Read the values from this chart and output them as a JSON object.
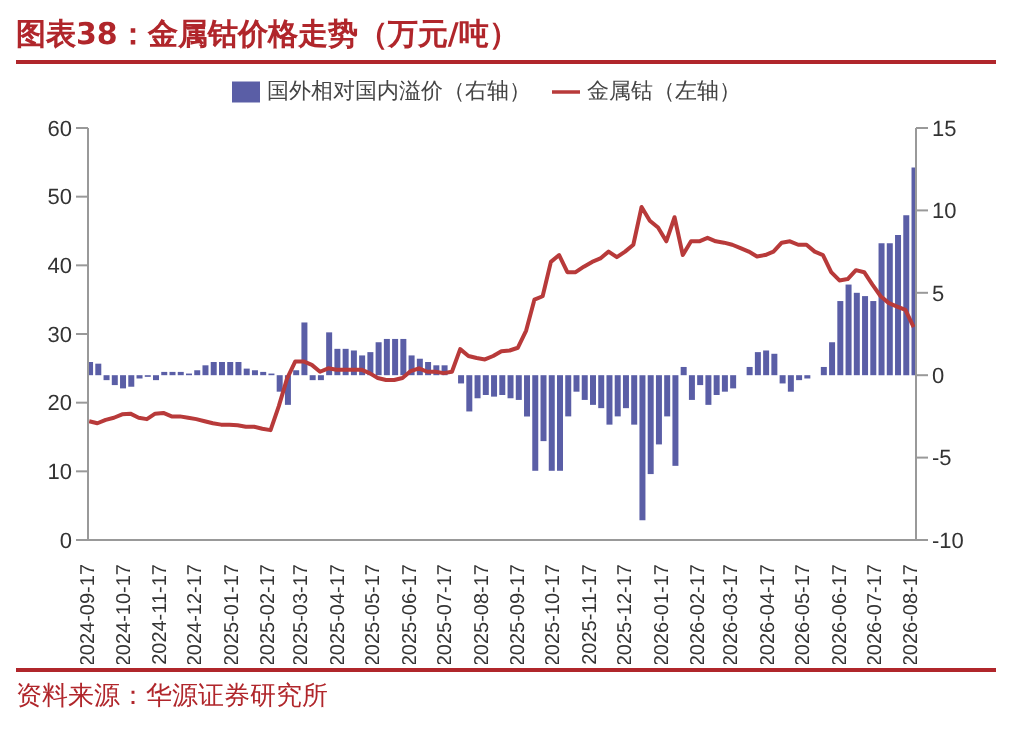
{
  "chart_data": {
    "type": "bar",
    "title": "图表38：金属钴价格走势（万元/吨）",
    "annotations": [
      "资料来源：华源证券研究所"
    ],
    "x": [
      "2024-09-17",
      "2024-09-24",
      "2024-10-01",
      "2024-10-08",
      "2024-10-15",
      "2024-10-22",
      "2024-10-29",
      "2024-11-05",
      "2024-11-12",
      "2024-11-19",
      "2024-11-26",
      "2024-12-03",
      "2024-12-10",
      "2024-12-17",
      "2024-12-24",
      "2024-12-31",
      "2025-01-07",
      "2025-01-14",
      "2025-01-21",
      "2025-01-28",
      "2025-02-04",
      "2025-02-11",
      "2025-02-18",
      "2025-02-25",
      "2025-03-04",
      "2025-03-11",
      "2025-03-18",
      "2025-03-25",
      "2025-04-01",
      "2025-04-08",
      "2025-04-15",
      "2025-04-22",
      "2025-04-29",
      "2025-05-06",
      "2025-05-13",
      "2025-05-20",
      "2025-05-27",
      "2025-06-03",
      "2025-06-10",
      "2025-06-17",
      "2025-06-24",
      "2025-07-01",
      "2025-07-08",
      "2025-07-15",
      "2025-07-22",
      "2025-07-29",
      "2025-08-05",
      "2025-08-12",
      "2025-08-19",
      "2025-08-26",
      "2025-09-02",
      "2025-09-09",
      "2025-09-16",
      "2025-09-23",
      "2025-09-30",
      "2025-10-07",
      "2025-10-14",
      "2025-10-21",
      "2025-10-28",
      "2025-11-04",
      "2025-11-11",
      "2025-11-18",
      "2025-11-25",
      "2025-12-02",
      "2025-12-09",
      "2025-12-16",
      "2025-12-23",
      "2025-12-30",
      "2026-01-06",
      "2026-01-13",
      "2026-01-20",
      "2026-01-27",
      "2026-02-03",
      "2026-02-10",
      "2026-02-17",
      "2026-02-24",
      "2026-03-03",
      "2026-03-10",
      "2026-03-17",
      "2026-03-24",
      "2026-03-31",
      "2026-04-07",
      "2026-04-14",
      "2026-04-21",
      "2026-04-28",
      "2026-05-05",
      "2026-05-12",
      "2026-05-19",
      "2026-05-26",
      "2026-06-02",
      "2026-06-09",
      "2026-06-16",
      "2026-06-23",
      "2026-06-30",
      "2026-07-07",
      "2026-07-14",
      "2026-07-21",
      "2026-07-28",
      "2026-08-04",
      "2026-08-11",
      "2026-08-18"
    ],
    "series": [
      {
        "name": "国外相对国内溢价（右轴）",
        "axis": "y2",
        "color": "#5a5ea6",
        "values": [
          0.8,
          0.7,
          -0.3,
          -0.6,
          -0.8,
          -0.7,
          -0.2,
          -0.1,
          -0.3,
          0.2,
          0.2,
          0.2,
          0.1,
          0.3,
          0.6,
          0.8,
          0.8,
          0.8,
          0.8,
          0.4,
          0.3,
          0.2,
          0.1,
          -1.0,
          -1.8,
          0.3,
          3.2,
          -0.3,
          -0.3,
          2.6,
          1.6,
          1.6,
          1.5,
          1.2,
          1.4,
          2.0,
          2.2,
          2.2,
          2.2,
          1.2,
          1.0,
          0.8,
          0.6,
          0.6,
          null,
          -0.5,
          -2.2,
          -1.4,
          -1.2,
          -1.3,
          -1.2,
          -1.4,
          -1.5,
          -2.5,
          -5.8,
          -4.0,
          -5.8,
          -5.8,
          -2.5,
          -1.0,
          -1.5,
          -1.8,
          -2.0,
          -3.0,
          -2.5,
          -2.0,
          -3.0,
          -8.8,
          -6.0,
          -4.2,
          -2.5,
          -5.5,
          0.5,
          -1.5,
          -0.6,
          -1.8,
          -1.2,
          -1.0,
          -0.8,
          0.0,
          0.5,
          1.4,
          1.5,
          1.3,
          -0.5,
          -1.0,
          -0.3,
          -0.2,
          0.0,
          0.5,
          2.0,
          4.5,
          5.5,
          5.0,
          4.8,
          4.5,
          8.0,
          8.0,
          8.5,
          9.7,
          12.6
        ]
      },
      {
        "name": "金属钴（左轴）",
        "type": "line",
        "color": "#b83a3a",
        "values": [
          17.3,
          17.0,
          17.5,
          17.8,
          18.3,
          18.4,
          17.8,
          17.6,
          18.4,
          18.5,
          18.0,
          18.0,
          17.8,
          17.6,
          17.3,
          17.0,
          16.8,
          16.8,
          16.7,
          16.5,
          16.5,
          16.2,
          16.0,
          19.5,
          23.5,
          26.0,
          26.0,
          25.5,
          24.5,
          25.0,
          24.8,
          24.8,
          24.8,
          24.8,
          24.3,
          23.6,
          23.3,
          23.3,
          23.6,
          24.6,
          25.0,
          24.5,
          24.5,
          24.3,
          24.5,
          27.8,
          26.8,
          26.5,
          26.3,
          26.8,
          27.5,
          27.6,
          28.0,
          30.5,
          35.0,
          35.5,
          40.5,
          41.5,
          39.0,
          39.0,
          39.8,
          40.5,
          41.0,
          42.0,
          41.2,
          42.0,
          43.0,
          48.5,
          46.5,
          45.5,
          43.5,
          47.0,
          41.5,
          43.5,
          43.5,
          44.0,
          43.5,
          43.3,
          43.0,
          42.5,
          42.0,
          41.3,
          41.5,
          42.0,
          43.3,
          43.5,
          43.0,
          43.0,
          42.0,
          41.5,
          39.0,
          37.8,
          38.0,
          39.3,
          39.0,
          37.2,
          35.5,
          34.5,
          34.0,
          33.5,
          31.0
        ]
      }
    ],
    "xlim": [
      "2024-09-16",
      "2026-08-20"
    ],
    "xticks": [
      "2024-09-17",
      "2024-10-17",
      "2024-11-17",
      "2024-12-17",
      "2025-01-17",
      "2025-02-17",
      "2025-03-17",
      "2025-04-17",
      "2025-05-17",
      "2025-06-17",
      "2025-07-17",
      "2025-08-17",
      "2025-09-17",
      "2025-10-17",
      "2025-11-17",
      "2025-12-17",
      "2026-01-17",
      "2026-02-17",
      "2026-03-17",
      "2026-04-17",
      "2026-05-17",
      "2026-06-17",
      "2026-07-17",
      "2026-08-17"
    ],
    "ylim": [
      0,
      60
    ],
    "yticks": [
      0,
      10,
      20,
      30,
      40,
      50,
      60
    ],
    "y2lim": [
      -10,
      15
    ],
    "y2ticks": [
      -10,
      -5,
      0,
      5,
      10,
      15
    ],
    "legend": "top",
    "grid": false,
    "marker": "none",
    "line_style": "solid"
  }
}
